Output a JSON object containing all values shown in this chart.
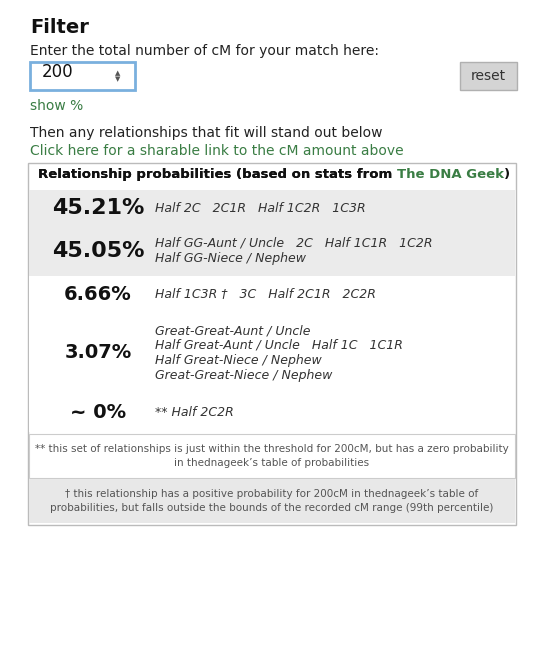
{
  "title": "Filter",
  "subtitle": "Enter the total number of cM for your match here:",
  "input_value": "200",
  "reset_label": "reset",
  "show_percent_label": "show %",
  "info_text1": "Then any relationships that fit will stand out below",
  "info_text2": "Click here for a sharable link to the cM amount above",
  "table_title_plain": "Relationship probabilities (based on stats from ",
  "table_title_green": "The DNA Geek",
  "table_title_end": ")",
  "background_color": "#ffffff",
  "green_color": "#3a7d44",
  "rows": [
    {
      "percent": "45.21%",
      "lines": [
        "Half 2C   2C1R   Half 1C2R   1C3R"
      ],
      "bg": "#ebebeb"
    },
    {
      "percent": "45.05%",
      "lines": [
        "Half GG-Aunt / Uncle   2C   Half 1C1R   1C2R",
        "Half GG-Niece / Nephew"
      ],
      "bg": "#ebebeb"
    },
    {
      "percent": "6.66%",
      "lines": [
        "Half 1C3R †   3C   Half 2C1R   2C2R"
      ],
      "bg": "#ffffff"
    },
    {
      "percent": "3.07%",
      "lines": [
        "Great-Great-Aunt / Uncle",
        "Half Great-Aunt / Uncle   Half 1C   1C1R",
        "Half Great-Niece / Nephew",
        "Great-Great-Niece / Nephew"
      ],
      "bg": "#ffffff"
    },
    {
      "percent": "~ 0%",
      "lines": [
        "** Half 2C2R"
      ],
      "bg": "#ffffff"
    }
  ],
  "footnote1": "** this set of relationships is just within the threshold for 200cM, but has a zero probability\nin thednageek’s table of probabilities",
  "footnote2": "† this relationship has a positive probability for 200cM in thednageek’s table of\nprobabilities, but falls outside the bounds of the recorded cM range (99th percentile)"
}
